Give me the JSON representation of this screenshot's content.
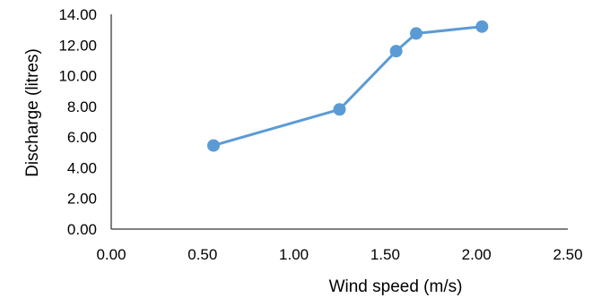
{
  "chart_data": {
    "type": "line",
    "xlabel": "Wind speed (m/s)",
    "ylabel": "Discharge (litres)",
    "xlim": [
      0,
      2.5
    ],
    "ylim": [
      0,
      14
    ],
    "x_ticks": [
      "0.00",
      "0.50",
      "1.00",
      "1.50",
      "2.00",
      "2.50"
    ],
    "y_ticks": [
      "0.00",
      "2.00",
      "4.00",
      "6.00",
      "8.00",
      "10.00",
      "12.00",
      "14.00"
    ],
    "grid": false,
    "legend": "none",
    "series": [
      {
        "color": "#5B9BD5",
        "x": [
          0.56,
          1.25,
          1.56,
          1.67,
          2.03
        ],
        "y": [
          5.45,
          7.8,
          11.6,
          12.75,
          13.2
        ]
      }
    ]
  }
}
